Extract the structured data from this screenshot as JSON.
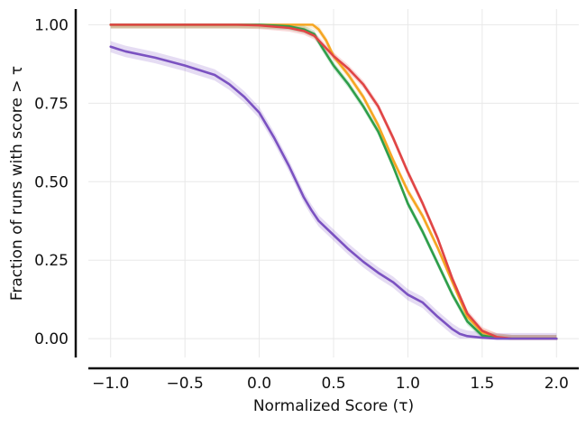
{
  "chart_data": {
    "type": "line",
    "title": "",
    "xlabel": "Normalized Score (τ)",
    "ylabel": "Fraction of runs with score > τ",
    "xlim": [
      -1.15,
      2.15
    ],
    "ylim": [
      -0.06,
      1.05
    ],
    "xticks": [
      -1.0,
      -0.5,
      0.0,
      0.5,
      1.0,
      1.5,
      2.0
    ],
    "xtick_labels": [
      "−1.0",
      "−0.5",
      "0.0",
      "0.5",
      "1.0",
      "1.5",
      "2.0"
    ],
    "yticks": [
      0.0,
      0.25,
      0.5,
      0.75,
      1.0
    ],
    "ytick_labels": [
      "0.00",
      "0.25",
      "0.50",
      "0.75",
      "1.00"
    ],
    "grid": true,
    "legend": "none",
    "series": [
      {
        "name": "orange",
        "color": "#f5a623",
        "band": 0.012,
        "x": [
          -1.0,
          0.0,
          0.3,
          0.36,
          0.4,
          0.45,
          0.5,
          0.6,
          0.7,
          0.8,
          0.9,
          1.0,
          1.1,
          1.2,
          1.3,
          1.4,
          1.5,
          1.6,
          1.7,
          2.0
        ],
        "y": [
          1.0,
          1.0,
          1.0,
          1.0,
          0.985,
          0.95,
          0.9,
          0.84,
          0.77,
          0.68,
          0.57,
          0.47,
          0.39,
          0.29,
          0.18,
          0.07,
          0.02,
          0.005,
          0.0,
          0.0
        ]
      },
      {
        "name": "green",
        "color": "#2e9e4a",
        "band": 0.012,
        "x": [
          -1.0,
          0.0,
          0.2,
          0.3,
          0.37,
          0.42,
          0.5,
          0.6,
          0.7,
          0.8,
          0.9,
          1.0,
          1.1,
          1.2,
          1.3,
          1.4,
          1.5,
          1.6,
          1.7,
          2.0
        ],
        "y": [
          1.0,
          1.0,
          0.995,
          0.985,
          0.97,
          0.93,
          0.87,
          0.81,
          0.74,
          0.66,
          0.55,
          0.43,
          0.34,
          0.24,
          0.14,
          0.055,
          0.01,
          0.002,
          0.0,
          0.0
        ]
      },
      {
        "name": "red",
        "color": "#e04545",
        "band": 0.012,
        "x": [
          -1.0,
          -0.15,
          0.0,
          0.2,
          0.3,
          0.37,
          0.42,
          0.5,
          0.6,
          0.7,
          0.8,
          0.9,
          1.0,
          1.1,
          1.2,
          1.3,
          1.4,
          1.5,
          1.6,
          1.7,
          2.0
        ],
        "y": [
          1.0,
          1.0,
          0.998,
          0.99,
          0.98,
          0.965,
          0.94,
          0.9,
          0.86,
          0.81,
          0.74,
          0.64,
          0.53,
          0.43,
          0.32,
          0.19,
          0.08,
          0.025,
          0.005,
          0.0,
          0.0
        ]
      },
      {
        "name": "purple",
        "color": "#7b52c1",
        "band": 0.018,
        "x": [
          -1.0,
          -0.9,
          -0.7,
          -0.5,
          -0.3,
          -0.2,
          -0.1,
          0.0,
          0.1,
          0.2,
          0.3,
          0.35,
          0.4,
          0.5,
          0.6,
          0.7,
          0.8,
          0.9,
          1.0,
          1.1,
          1.2,
          1.3,
          1.35,
          1.4,
          1.5,
          1.6,
          1.7,
          2.0
        ],
        "y": [
          0.93,
          0.915,
          0.895,
          0.87,
          0.84,
          0.81,
          0.77,
          0.72,
          0.64,
          0.55,
          0.45,
          0.41,
          0.375,
          0.33,
          0.285,
          0.245,
          0.21,
          0.18,
          0.14,
          0.115,
          0.07,
          0.03,
          0.015,
          0.008,
          0.003,
          0.0,
          0.0,
          0.0
        ]
      }
    ]
  }
}
